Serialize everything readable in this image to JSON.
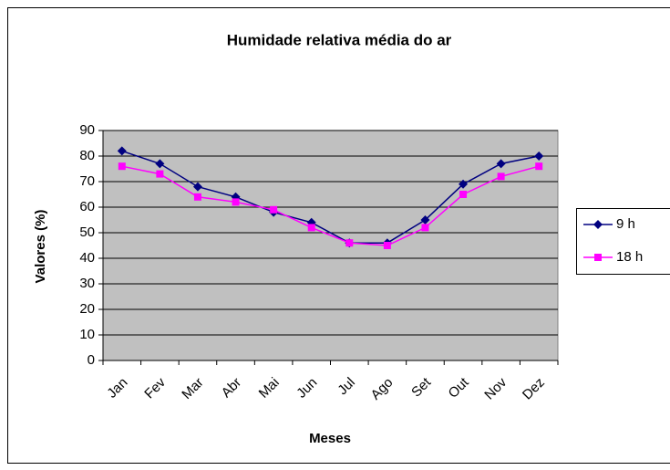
{
  "chart_data": {
    "type": "line",
    "title": "Humidade relativa média do ar",
    "x_label": "Meses",
    "y_label": "Valores (%)",
    "categories": [
      "Jan",
      "Fev",
      "Mar",
      "Abr",
      "Mai",
      "Jun",
      "Jul",
      "Ago",
      "Set",
      "Out",
      "Nov",
      "Dez"
    ],
    "series": [
      {
        "name": "9 h",
        "color": "#000080",
        "marker": "diamond",
        "values": [
          82,
          77,
          68,
          64,
          58,
          54,
          46,
          46,
          55,
          69,
          77,
          80
        ]
      },
      {
        "name": "18 h",
        "color": "#ff00ff",
        "marker": "square",
        "values": [
          76,
          73,
          64,
          62,
          59,
          52,
          46,
          45,
          52,
          65,
          72,
          76
        ]
      }
    ],
    "ylim": [
      0,
      90
    ],
    "yticks": [
      0,
      10,
      20,
      30,
      40,
      50,
      60,
      70,
      80,
      90
    ],
    "grid": true,
    "legend": "right"
  }
}
